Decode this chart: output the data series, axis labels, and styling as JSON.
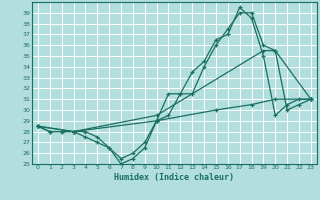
{
  "xlabel": "Humidex (Indice chaleur)",
  "background_color": "#b2dede",
  "grid_color": "#ffffff",
  "line_color": "#1a7060",
  "xlim": [
    -0.5,
    23.5
  ],
  "ylim": [
    25,
    40
  ],
  "xticks": [
    0,
    1,
    2,
    3,
    4,
    5,
    6,
    7,
    8,
    9,
    10,
    11,
    12,
    13,
    14,
    15,
    16,
    17,
    18,
    19,
    20,
    21,
    22,
    23
  ],
  "yticks": [
    25,
    26,
    27,
    28,
    29,
    30,
    31,
    32,
    33,
    34,
    35,
    36,
    37,
    38,
    39
  ],
  "line1_x": [
    0,
    1,
    2,
    3,
    4,
    5,
    6,
    7,
    8,
    9,
    10,
    11,
    12,
    13,
    14,
    15,
    16,
    17,
    18,
    19,
    20,
    21,
    22,
    23
  ],
  "line1_y": [
    28.5,
    28.0,
    28.0,
    28.0,
    27.5,
    27.0,
    26.5,
    25.0,
    25.5,
    26.5,
    29.0,
    31.5,
    31.5,
    33.5,
    34.5,
    36.5,
    37.0,
    39.5,
    38.5,
    35.0,
    29.5,
    30.5,
    31.0,
    31.0
  ],
  "line2_x": [
    0,
    1,
    2,
    3,
    4,
    5,
    6,
    7,
    8,
    9,
    10,
    11,
    12,
    13,
    14,
    15,
    16,
    17,
    18,
    19,
    20,
    21,
    22,
    23
  ],
  "line2_y": [
    28.5,
    28.0,
    28.0,
    28.0,
    28.0,
    27.5,
    26.5,
    25.5,
    26.0,
    27.0,
    29.0,
    29.5,
    31.5,
    31.5,
    34.0,
    36.0,
    37.5,
    39.0,
    39.0,
    36.0,
    35.5,
    30.0,
    30.5,
    31.0
  ],
  "line3_x": [
    0,
    3,
    10,
    15,
    18,
    20,
    23
  ],
  "line3_y": [
    28.5,
    28.0,
    29.0,
    30.0,
    30.5,
    31.0,
    31.0
  ],
  "line4_x": [
    0,
    3,
    10,
    19,
    20,
    23
  ],
  "line4_y": [
    28.5,
    28.0,
    29.5,
    35.5,
    35.5,
    31.0
  ]
}
